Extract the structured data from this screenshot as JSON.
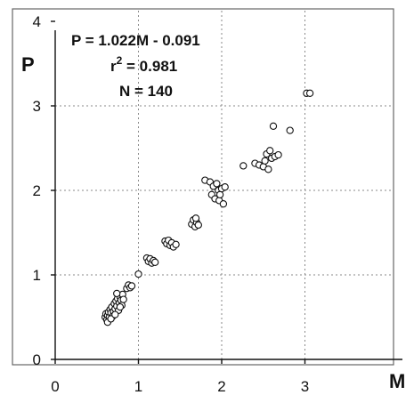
{
  "chart_data": {
    "type": "scatter",
    "xlabel": "M",
    "ylabel": "P",
    "xlim": [
      0,
      4
    ],
    "ylim": [
      0,
      4
    ],
    "x_ticks": [
      "0",
      "1",
      "2",
      "3"
    ],
    "y_ticks": [
      "0",
      "1",
      "2",
      "3",
      "4"
    ],
    "grid": true,
    "annotations": {
      "equation": "P = 1.022M - 0.091",
      "r2_prefix": "r",
      "r2_sup": "2",
      "r2_value": " = 0.981",
      "n": "N = 140"
    },
    "points": [
      {
        "x": 0.6,
        "y": 0.5
      },
      {
        "x": 0.61,
        "y": 0.54
      },
      {
        "x": 0.62,
        "y": 0.47
      },
      {
        "x": 0.63,
        "y": 0.52
      },
      {
        "x": 0.64,
        "y": 0.56
      },
      {
        "x": 0.65,
        "y": 0.5
      },
      {
        "x": 0.66,
        "y": 0.59
      },
      {
        "x": 0.67,
        "y": 0.55
      },
      {
        "x": 0.68,
        "y": 0.62
      },
      {
        "x": 0.69,
        "y": 0.51
      },
      {
        "x": 0.7,
        "y": 0.57
      },
      {
        "x": 0.71,
        "y": 0.66
      },
      {
        "x": 0.72,
        "y": 0.6
      },
      {
        "x": 0.73,
        "y": 0.69
      },
      {
        "x": 0.74,
        "y": 0.63
      },
      {
        "x": 0.75,
        "y": 0.72
      },
      {
        "x": 0.76,
        "y": 0.58
      },
      {
        "x": 0.77,
        "y": 0.67
      },
      {
        "x": 0.78,
        "y": 0.74
      },
      {
        "x": 0.79,
        "y": 0.7
      },
      {
        "x": 0.8,
        "y": 0.64
      },
      {
        "x": 0.81,
        "y": 0.77
      },
      {
        "x": 0.82,
        "y": 0.71
      },
      {
        "x": 0.63,
        "y": 0.44
      },
      {
        "x": 0.67,
        "y": 0.48
      },
      {
        "x": 0.72,
        "y": 0.53
      },
      {
        "x": 0.78,
        "y": 0.62
      },
      {
        "x": 0.74,
        "y": 0.78
      },
      {
        "x": 0.86,
        "y": 0.84
      },
      {
        "x": 0.88,
        "y": 0.88
      },
      {
        "x": 0.9,
        "y": 0.85
      },
      {
        "x": 0.92,
        "y": 0.87
      },
      {
        "x": 1.0,
        "y": 1.01
      },
      {
        "x": 1.1,
        "y": 1.2
      },
      {
        "x": 1.12,
        "y": 1.16
      },
      {
        "x": 1.14,
        "y": 1.19
      },
      {
        "x": 1.16,
        "y": 1.14
      },
      {
        "x": 1.18,
        "y": 1.17
      },
      {
        "x": 1.2,
        "y": 1.15
      },
      {
        "x": 1.32,
        "y": 1.4
      },
      {
        "x": 1.34,
        "y": 1.37
      },
      {
        "x": 1.36,
        "y": 1.41
      },
      {
        "x": 1.38,
        "y": 1.35
      },
      {
        "x": 1.4,
        "y": 1.38
      },
      {
        "x": 1.42,
        "y": 1.33
      },
      {
        "x": 1.45,
        "y": 1.36
      },
      {
        "x": 1.64,
        "y": 1.6
      },
      {
        "x": 1.66,
        "y": 1.65
      },
      {
        "x": 1.68,
        "y": 1.57
      },
      {
        "x": 1.7,
        "y": 1.62
      },
      {
        "x": 1.72,
        "y": 1.59
      },
      {
        "x": 1.69,
        "y": 1.67
      },
      {
        "x": 1.8,
        "y": 2.12
      },
      {
        "x": 1.86,
        "y": 2.1
      },
      {
        "x": 1.88,
        "y": 1.95
      },
      {
        "x": 1.9,
        "y": 2.05
      },
      {
        "x": 1.92,
        "y": 1.9
      },
      {
        "x": 1.94,
        "y": 2.08
      },
      {
        "x": 1.96,
        "y": 2.0
      },
      {
        "x": 1.97,
        "y": 1.88
      },
      {
        "x": 1.98,
        "y": 1.95
      },
      {
        "x": 2.0,
        "y": 2.02
      },
      {
        "x": 2.02,
        "y": 1.84
      },
      {
        "x": 2.04,
        "y": 2.04
      },
      {
        "x": 2.26,
        "y": 2.29
      },
      {
        "x": 2.4,
        "y": 2.32
      },
      {
        "x": 2.45,
        "y": 2.3
      },
      {
        "x": 2.5,
        "y": 2.28
      },
      {
        "x": 2.52,
        "y": 2.35
      },
      {
        "x": 2.54,
        "y": 2.43
      },
      {
        "x": 2.56,
        "y": 2.25
      },
      {
        "x": 2.58,
        "y": 2.47
      },
      {
        "x": 2.6,
        "y": 2.38
      },
      {
        "x": 2.62,
        "y": 2.76
      },
      {
        "x": 2.64,
        "y": 2.4
      },
      {
        "x": 2.68,
        "y": 2.42
      },
      {
        "x": 2.82,
        "y": 2.71
      },
      {
        "x": 3.02,
        "y": 3.15
      },
      {
        "x": 3.06,
        "y": 3.15
      }
    ]
  }
}
